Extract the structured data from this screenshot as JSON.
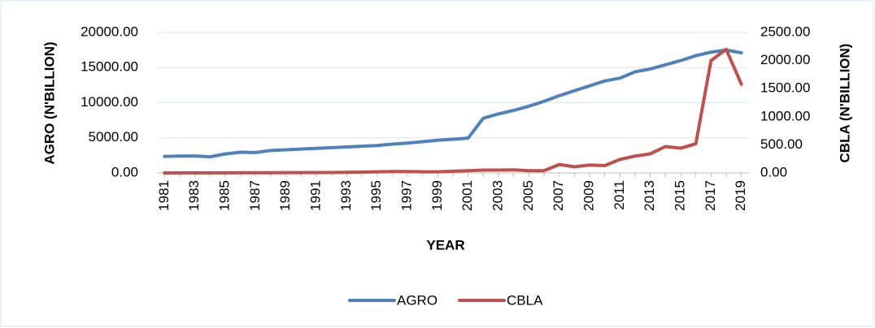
{
  "chart_data": {
    "type": "line",
    "x_label": "YEAR",
    "y_label": "AGRO (N'BILLION)",
    "y2_label": "CBLA (N'BILLION)",
    "categories": [
      "1981",
      null,
      "1983",
      null,
      "1985",
      null,
      "1987",
      null,
      "1989",
      null,
      "1991",
      null,
      "1993",
      null,
      "1995",
      null,
      "1997",
      null,
      "1999",
      null,
      "2001",
      null,
      "2003",
      null,
      "2005",
      null,
      "2007",
      null,
      "2009",
      null,
      "2011",
      null,
      "2013",
      null,
      "2015",
      null,
      "2017",
      null,
      "2019"
    ],
    "series": [
      {
        "name": "AGRO",
        "color": "#4f81bd",
        "values": [
          2350,
          2400,
          2420,
          2300,
          2700,
          2950,
          2900,
          3200,
          3300,
          3400,
          3500,
          3600,
          3700,
          3800,
          3900,
          4100,
          4250,
          4450,
          4650,
          4800,
          4950,
          7800,
          8400,
          8900,
          9500,
          10200,
          11000,
          11700,
          12400,
          13100,
          13500,
          14400,
          14800,
          15400,
          16000,
          16700,
          17200,
          17500,
          17100
        ]
      },
      {
        "name": "CBLA",
        "color": "#c0504d",
        "axis": "y2",
        "values": [
          0,
          1,
          1,
          2,
          2,
          3,
          3,
          4,
          5,
          6,
          7,
          8,
          10,
          15,
          20,
          25,
          25,
          20,
          20,
          30,
          40,
          50,
          50,
          55,
          40,
          40,
          150,
          110,
          140,
          130,
          240,
          300,
          340,
          470,
          440,
          520,
          2000,
          2200,
          1580
        ]
      }
    ],
    "ylim": [
      0,
      20000
    ],
    "yticks": [
      {
        "value": 0,
        "label": "0.00"
      },
      {
        "value": 5000,
        "label": "5000.00"
      },
      {
        "value": 10000,
        "label": "10000.00"
      },
      {
        "value": 15000,
        "label": "15000.00"
      },
      {
        "value": 20000,
        "label": "20000.00"
      }
    ],
    "y2lim": [
      0,
      2500
    ],
    "y2ticks": [
      {
        "value": 0,
        "label": "0.00"
      },
      {
        "value": 500,
        "label": "500.00"
      },
      {
        "value": 1000,
        "label": "1000.00"
      },
      {
        "value": 1500,
        "label": "1500.00"
      },
      {
        "value": 2000,
        "label": "2000.00"
      },
      {
        "value": 2500,
        "label": "2500.00"
      }
    ],
    "grid": true,
    "legend": "bottom"
  }
}
